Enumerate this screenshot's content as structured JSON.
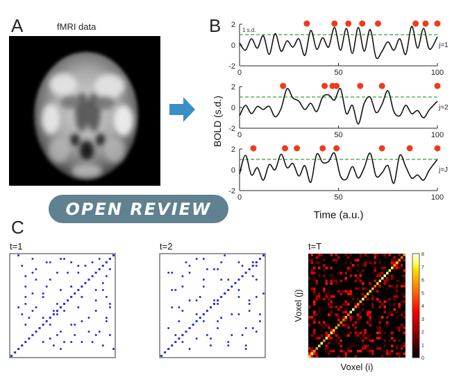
{
  "panel_a": {
    "letter": "A",
    "title": "fMRI data"
  },
  "arrow": {
    "color": "#3a8fc6"
  },
  "panel_b": {
    "letter": "B",
    "y_axis_label": "BOLD  (s.d.)",
    "x_axis_label": "Time  (a.u.)",
    "threshold_label": "1 s.d.",
    "threshold_color": "#33a033",
    "event_color": "#ee3b1e",
    "trace_color": "#111111"
  },
  "panel_c": {
    "letter": "C",
    "matrix_color": "#2a2ee0"
  },
  "badge": {
    "text": "OPEN REVIEW",
    "color": "#5f8190"
  },
  "chart_data": [
    {
      "type": "line",
      "label": "j=1",
      "x": [
        0,
        3,
        6,
        9,
        12,
        15,
        18,
        21,
        24,
        27,
        30,
        33,
        36,
        39,
        42,
        45,
        48,
        51,
        54,
        57,
        60,
        63,
        66,
        69,
        72,
        75,
        78,
        81,
        84,
        87,
        90,
        93,
        96,
        100
      ],
      "y": [
        0.2,
        -0.5,
        0.6,
        -0.3,
        0.9,
        -0.9,
        1.1,
        -0.6,
        0.4,
        -0.2,
        0.6,
        -1.0,
        1.4,
        -0.4,
        0.7,
        -0.2,
        1.7,
        -0.5,
        1.6,
        -0.8,
        1.7,
        -0.6,
        1.5,
        -1.2,
        -0.6,
        0.3,
        -0.5,
        0.6,
        -0.9,
        1.8,
        -0.3,
        1.6,
        -0.4,
        0.8
      ],
      "events_x": [
        34,
        48,
        55,
        62,
        70,
        89,
        94,
        100
      ],
      "threshold": 1,
      "xlim": [
        0,
        100
      ],
      "ylim": [
        -2,
        2
      ],
      "xticks": [
        0,
        50,
        100
      ],
      "yticks": [
        -2,
        0,
        2
      ]
    },
    {
      "type": "line",
      "label": "j=2",
      "x": [
        0,
        3,
        6,
        9,
        12,
        15,
        18,
        21,
        24,
        27,
        30,
        33,
        36,
        39,
        42,
        45,
        48,
        51,
        54,
        57,
        60,
        63,
        66,
        69,
        72,
        75,
        78,
        81,
        84,
        87,
        90,
        93,
        96,
        100
      ],
      "y": [
        -0.8,
        0.2,
        -0.6,
        0.1,
        -0.2,
        0.1,
        -0.9,
        -0.1,
        1.8,
        0.9,
        0.6,
        -0.2,
        0.4,
        -0.4,
        1.0,
        1.2,
        0.7,
        1.8,
        -0.6,
        0.2,
        -1.6,
        0.4,
        1.0,
        -0.5,
        0.3,
        1.6,
        -0.4,
        -0.8,
        0.2,
        -0.6,
        -0.3,
        -1.0,
        -0.2,
        0.6
      ],
      "events_x": [
        22,
        43,
        47,
        49,
        61,
        72,
        100
      ],
      "threshold": 1,
      "xlim": [
        0,
        100
      ],
      "ylim": [
        -2,
        2
      ],
      "xticks": [
        0,
        50,
        100
      ],
      "yticks": [
        -2,
        0,
        2
      ]
    },
    {
      "type": "line",
      "label": "j=J",
      "x": [
        0,
        3,
        6,
        9,
        12,
        15,
        18,
        21,
        24,
        27,
        30,
        33,
        36,
        39,
        42,
        45,
        48,
        51,
        54,
        57,
        60,
        63,
        66,
        69,
        72,
        75,
        78,
        81,
        84,
        87,
        90,
        93,
        96,
        100
      ],
      "y": [
        -0.4,
        1.4,
        -0.5,
        0.2,
        -1.0,
        0.5,
        0.0,
        1.5,
        0.2,
        0.6,
        -0.6,
        0.4,
        -1.2,
        1.5,
        0.7,
        0.8,
        1.6,
        -0.6,
        -0.9,
        0.3,
        -0.8,
        0.2,
        1.6,
        -0.6,
        -0.3,
        0.4,
        -1.3,
        1.4,
        0.3,
        -0.8,
        -0.5,
        -1.0,
        0.0,
        1.0
      ],
      "events_x": [
        7,
        23,
        29,
        42,
        49,
        72,
        86,
        100
      ],
      "threshold": 1,
      "xlim": [
        0,
        100
      ],
      "ylim": [
        -2,
        2
      ],
      "xticks": [
        0,
        50,
        100
      ],
      "yticks": [
        -2,
        0,
        2
      ]
    },
    {
      "type": "scatter",
      "label": "t=1",
      "size": 30,
      "points": [
        [
          12,
          3
        ],
        [
          17,
          4
        ],
        [
          23,
          4
        ],
        [
          25,
          7
        ],
        [
          18,
          9
        ],
        [
          20,
          10
        ],
        [
          5,
          11
        ],
        [
          27,
          11
        ],
        [
          12,
          13
        ],
        [
          15,
          13
        ],
        [
          9,
          17
        ],
        [
          20,
          17
        ],
        [
          28,
          15
        ],
        [
          4,
          20
        ],
        [
          17,
          20
        ],
        [
          24,
          19
        ],
        [
          11,
          22
        ],
        [
          27,
          23
        ],
        [
          6,
          24
        ],
        [
          16,
          24
        ],
        [
          21,
          26
        ],
        [
          10,
          27
        ],
        [
          2,
          14
        ],
        [
          28,
          6
        ],
        [
          22,
          7
        ],
        [
          19,
          14
        ],
        [
          13,
          6
        ],
        [
          8,
          8
        ],
        [
          6,
          18
        ],
        [
          25,
          28
        ],
        [
          14,
          28
        ],
        [
          3,
          26
        ],
        [
          9,
          4
        ],
        [
          24,
          13
        ],
        [
          7,
          14
        ],
        [
          26,
          19
        ],
        [
          11,
          9
        ],
        [
          17,
          27
        ],
        [
          29,
          2
        ],
        [
          2,
          29
        ],
        [
          15,
          4
        ],
        [
          22,
          22
        ]
      ]
    },
    {
      "type": "scatter",
      "label": "t=2",
      "size": 30,
      "points": [
        [
          8,
          2
        ],
        [
          19,
          4
        ],
        [
          24,
          3
        ],
        [
          13,
          6
        ],
        [
          26,
          8
        ],
        [
          5,
          10
        ],
        [
          16,
          10
        ],
        [
          10,
          12
        ],
        [
          22,
          12
        ],
        [
          14,
          14
        ],
        [
          8,
          16
        ],
        [
          25,
          16
        ],
        [
          18,
          18
        ],
        [
          3,
          19
        ],
        [
          12,
          20
        ],
        [
          21,
          21
        ],
        [
          27,
          22
        ],
        [
          6,
          23
        ],
        [
          15,
          25
        ],
        [
          23,
          26
        ],
        [
          10,
          28
        ],
        [
          4,
          6
        ],
        [
          28,
          12
        ],
        [
          20,
          6
        ],
        [
          17,
          27
        ],
        [
          7,
          27
        ],
        [
          26,
          27
        ],
        [
          11,
          17
        ],
        [
          2,
          24
        ],
        [
          24,
          8
        ],
        [
          14,
          3
        ],
        [
          29,
          18
        ],
        [
          19,
          22
        ],
        [
          9,
          9
        ],
        [
          16,
          15
        ],
        [
          5,
          14
        ],
        [
          22,
          17
        ],
        [
          13,
          25
        ]
      ]
    },
    {
      "type": "heatmap",
      "label": "t=T",
      "xlabel": "Voxel (i)",
      "ylabel": "Voxel (j)",
      "size": 40,
      "vmin": 0,
      "vmax": 8,
      "colorbar_ticks": [
        0,
        1,
        2,
        3,
        4,
        5,
        6,
        7,
        8
      ]
    }
  ]
}
